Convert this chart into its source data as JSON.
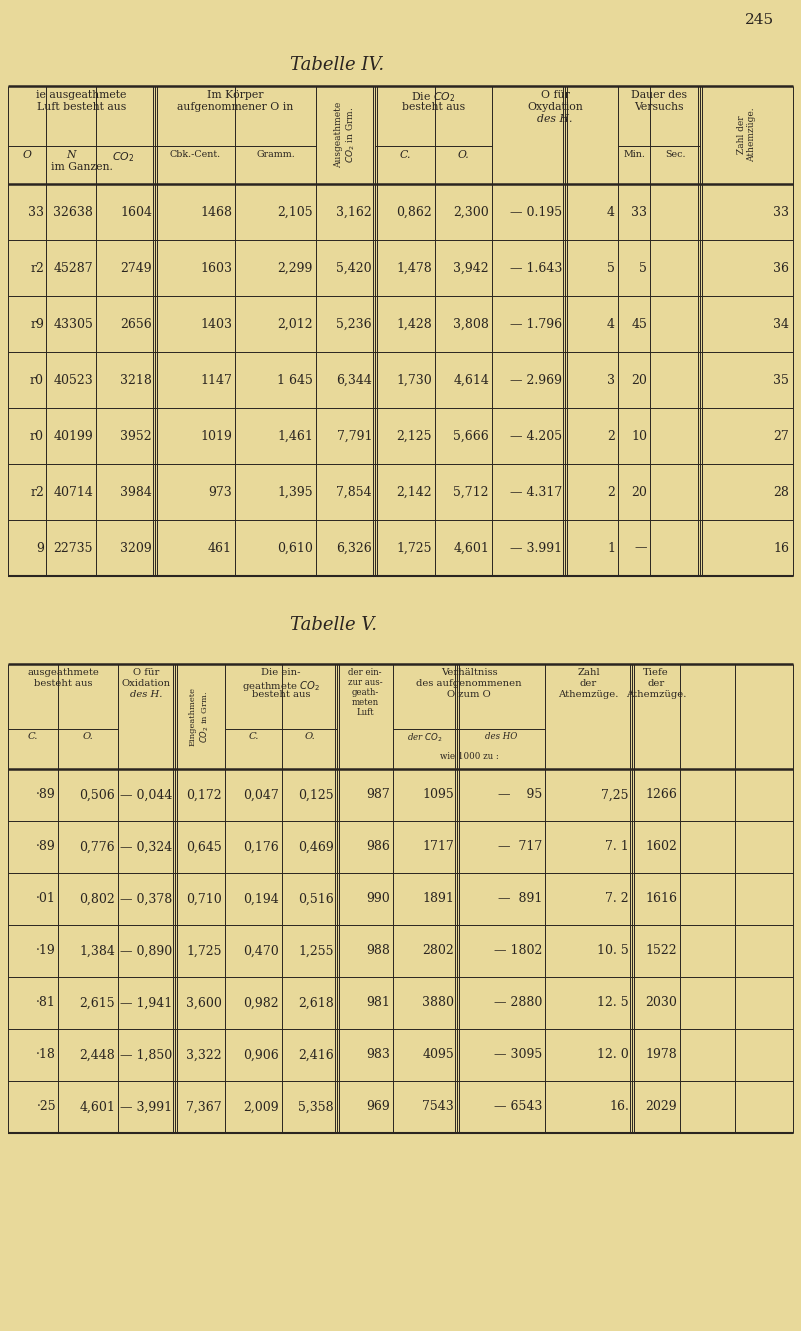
{
  "bg_color": "#e8d99a",
  "text_color": "#2a2520",
  "page_number": "245",
  "table4_title": "Tabelle IV.",
  "table5_title": "Tabelle V.",
  "t4_data": [
    [
      "33",
      "32638",
      "1604",
      "1468",
      "2,105",
      "3,162",
      "0,862",
      "2,300",
      "— 0.195",
      "4",
      "33",
      "33"
    ],
    [
      "r2",
      "45287",
      "2749",
      "1603",
      "2,299",
      "5,420",
      "1,478",
      "3,942",
      "— 1.643",
      "5",
      "5",
      "36"
    ],
    [
      "r9",
      "43305",
      "2656",
      "1403",
      "2,012",
      "5,236",
      "1,428",
      "3,808",
      "— 1.796",
      "4",
      "45",
      "34"
    ],
    [
      "r0",
      "40523",
      "3218",
      "1147",
      "1 645",
      "6,344",
      "1,730",
      "4,614",
      "— 2.969",
      "3",
      "20",
      "35"
    ],
    [
      "r0",
      "40199",
      "3952",
      "1019",
      "1,461",
      "7,791",
      "2,125",
      "5,666",
      "— 4.205",
      "2",
      "10",
      "27"
    ],
    [
      "r2",
      "40714",
      "3984",
      "973",
      "1,395",
      "7,854",
      "2,142",
      "5,712",
      "— 4.317",
      "2",
      "20",
      "28"
    ],
    [
      "9",
      "22735",
      "3209",
      "461",
      "0,610",
      "6,326",
      "1,725",
      "4,601",
      "— 3.991",
      "1",
      "—",
      "16"
    ]
  ],
  "t5_data": [
    [
      "·89",
      "0,506",
      "— 0,044",
      "0,172",
      "0,047",
      "0,125",
      "987",
      "1095",
      "—    95",
      "7,25",
      "1266"
    ],
    [
      "·89",
      "0,776",
      "— 0,324",
      "0,645",
      "0,176",
      "0,469",
      "986",
      "1717",
      "—  717",
      "7. 1",
      "1602"
    ],
    [
      "·01",
      "0,802",
      "— 0,378",
      "0,710",
      "0,194",
      "0,516",
      "990",
      "1891",
      "—  891",
      "7. 2",
      "1616"
    ],
    [
      "·19",
      "1,384",
      "— 0,890",
      "1,725",
      "0,470",
      "1,255",
      "988",
      "2802",
      "— 1802",
      "10. 5",
      "1522"
    ],
    [
      "·81",
      "2,615",
      "— 1,941",
      "3,600",
      "0,982",
      "2,618",
      "981",
      "3880",
      "— 2880",
      "12. 5",
      "2030"
    ],
    [
      "·18",
      "2,448",
      "— 1,850",
      "3,322",
      "0,906",
      "2,416",
      "983",
      "4095",
      "— 3095",
      "12. 0",
      "1978"
    ],
    [
      "·25",
      "4,601",
      "— 3,991",
      "7,367",
      "2,009",
      "5,358",
      "969",
      "7543",
      "— 6543",
      "16.",
      "2029"
    ]
  ]
}
